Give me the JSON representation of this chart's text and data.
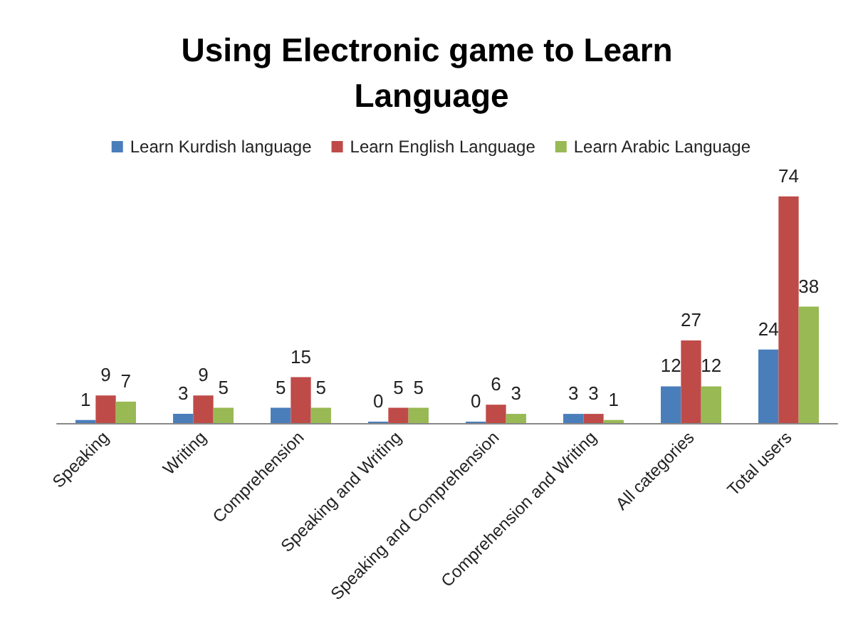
{
  "chart_data": {
    "type": "bar",
    "title": "Using Electronic game to Learn Language",
    "categories": [
      "Speaking",
      "Writing",
      "Comprehension",
      "Speaking and Writing",
      "Speaking and Comprehension",
      "Comprehension and Writing",
      "All categories",
      "Total users"
    ],
    "series": [
      {
        "name": "Learn Kurdish language",
        "color": "#4a7ebb",
        "values": [
          1,
          3,
          5,
          0,
          0,
          3,
          12,
          24
        ]
      },
      {
        "name": "Learn English Language",
        "color": "#be4b48",
        "values": [
          9,
          9,
          15,
          5,
          6,
          3,
          27,
          74
        ]
      },
      {
        "name": "Learn Arabic Language",
        "color": "#98b954",
        "values": [
          7,
          5,
          5,
          5,
          3,
          1,
          12,
          38
        ]
      }
    ],
    "data_labels": true,
    "legend": "top"
  }
}
